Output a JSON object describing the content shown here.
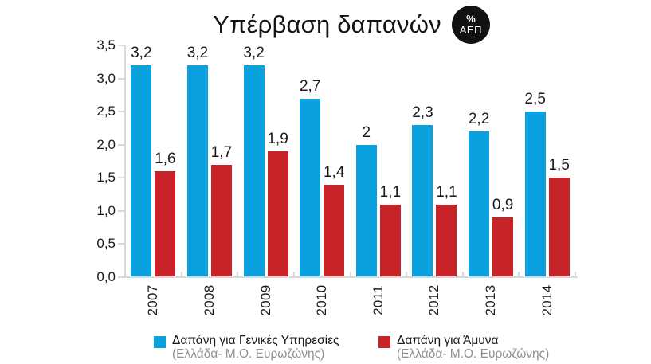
{
  "badge": {
    "percent": "%",
    "label": "ΑΕΠ"
  },
  "chart_data": {
    "type": "bar",
    "title": "Υπέρβαση δαπανών",
    "categories": [
      "2007",
      "2008",
      "2009",
      "2010",
      "2011",
      "2012",
      "2013",
      "2014"
    ],
    "series": [
      {
        "name": "Δαπάνη για Γενικές Υπηρεσίες",
        "subtitle": "(Ελλάδα- Μ.Ο. Ευρωζώνης)",
        "color": "#0ba0de",
        "values": [
          3.2,
          3.2,
          3.2,
          2.7,
          2,
          2.3,
          2.2,
          2.5
        ],
        "labels": [
          "3,2",
          "3,2",
          "3,2",
          "2,7",
          "2",
          "2,3",
          "2,2",
          "2,5"
        ]
      },
      {
        "name": "Δαπάνη για Άμυνα",
        "subtitle": "(Ελλάδα- Μ.Ο. Ευρωζώνης)",
        "color": "#c9232a",
        "values": [
          1.6,
          1.7,
          1.9,
          1.4,
          1.1,
          1.1,
          0.9,
          1.5
        ],
        "labels": [
          "1,6",
          "1,7",
          "1,9",
          "1,4",
          "1,1",
          "1,1",
          "0,9",
          "1,5"
        ]
      }
    ],
    "ylim": [
      0,
      3.5
    ],
    "yticks": [
      "3,5",
      "3,0",
      "2,5",
      "2,0",
      "1,5",
      "1,0",
      "0,5",
      "0,0"
    ],
    "grid": false,
    "legend_position": "bottom"
  }
}
